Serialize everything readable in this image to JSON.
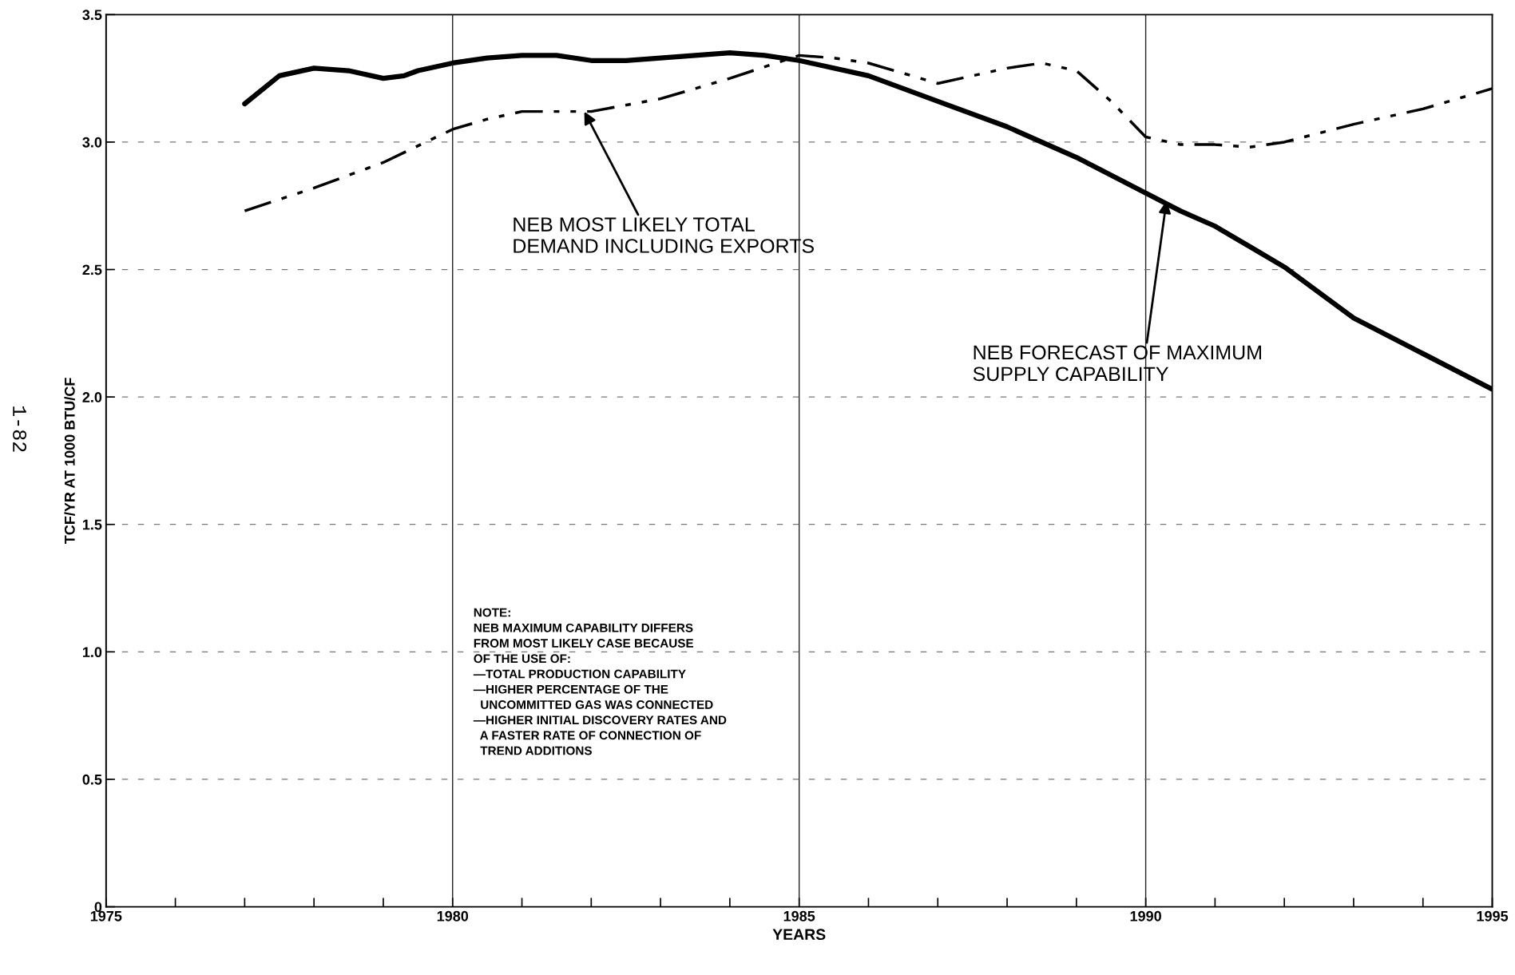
{
  "chart_data": {
    "type": "line",
    "xlabel": "YEARS",
    "ylabel": "TCF/YR AT 1000 BTU/CF",
    "xlim": [
      1975,
      1995
    ],
    "ylim": [
      0,
      3.5
    ],
    "xticks": [
      1975,
      {
        "value": 1976,
        "label": null
      },
      {
        "value": 1977,
        "label": null
      },
      {
        "value": 1978,
        "label": null
      },
      {
        "value": 1979,
        "label": null
      },
      1980,
      {
        "value": 1981,
        "label": null
      },
      {
        "value": 1982,
        "label": null
      },
      {
        "value": 1983,
        "label": null
      },
      {
        "value": 1984,
        "label": null
      },
      1985,
      {
        "value": 1986,
        "label": null
      },
      {
        "value": 1987,
        "label": null
      },
      {
        "value": 1988,
        "label": null
      },
      {
        "value": 1989,
        "label": null
      },
      1990,
      {
        "value": 1991,
        "label": null
      },
      {
        "value": 1992,
        "label": null
      },
      {
        "value": 1993,
        "label": null
      },
      {
        "value": 1994,
        "label": null
      },
      1995
    ],
    "yticks": [
      0,
      0.5,
      {
        "value": 1,
        "label": "1.0"
      },
      1.5,
      {
        "value": 2,
        "label": "2.0"
      },
      2.5,
      {
        "value": 3,
        "label": "3.0"
      },
      3.5
    ],
    "grid": true,
    "series": [
      {
        "color": "#000000",
        "line_style": "solid",
        "x": [
          1977,
          1977.5,
          1978,
          1978.5,
          1979,
          1979.3,
          1979.5,
          1980,
          1980.5,
          1981,
          1981.5,
          1982,
          1982.5,
          1983,
          1984,
          1984.5,
          1985,
          1986,
          1987,
          1988,
          1989,
          1990,
          1990.5,
          1991,
          1991.5,
          1992,
          1993,
          1994,
          1995
        ],
        "values": [
          3.15,
          3.26,
          3.29,
          3.28,
          3.25,
          3.26,
          3.28,
          3.31,
          3.33,
          3.34,
          3.34,
          3.32,
          3.32,
          3.33,
          3.35,
          3.34,
          3.32,
          3.26,
          3.16,
          3.06,
          2.94,
          2.8,
          2.73,
          2.67,
          2.59,
          2.51,
          2.31,
          2.17,
          2.03
        ]
      },
      {
        "color": "#000000",
        "line_style": "dashdotdot",
        "x": [
          1977,
          1978,
          1979,
          1980,
          1980.5,
          1981,
          1982,
          1983,
          1984,
          1985,
          1985.5,
          1986,
          1986.5,
          1987,
          1987.5,
          1988,
          1988.5,
          1989,
          1989.5,
          1990,
          1990.5,
          1991,
          1991.5,
          1992,
          1993,
          1994,
          1995
        ],
        "values": [
          2.73,
          2.82,
          2.92,
          3.05,
          3.09,
          3.12,
          3.12,
          3.17,
          3.25,
          3.34,
          3.33,
          3.31,
          3.27,
          3.23,
          3.26,
          3.29,
          3.31,
          3.28,
          3.16,
          3.02,
          2.99,
          2.99,
          2.98,
          3.0,
          3.07,
          3.13,
          3.21
        ]
      }
    ],
    "annotations": [
      {
        "text": "NEB MOST LIKELY TOTAL\nDEMAND INCLUDING EXPORTS",
        "x": 1981.9,
        "y": 3.12
      },
      {
        "text": "NEB FORECAST OF MAXIMUM\nSUPPLY CAPABILITY",
        "x": 1990.3,
        "y": 2.77
      },
      "NOTE:\nNEB MAXIMUM CAPABILITY DIFFERS\nFROM MOST LIKELY CASE BECAUSE\nOF THE USE OF:\n—TOTAL PRODUCTION CAPABILITY\n—HIGHER PERCENTAGE OF THE\n  UNCOMMITTED GAS WAS CONNECTED\n—HIGHER INITIAL DISCOVERY RATES AND\n  A FASTER RATE OF CONNECTION OF\n  TREND ADDITIONS",
      "1-82"
    ]
  }
}
